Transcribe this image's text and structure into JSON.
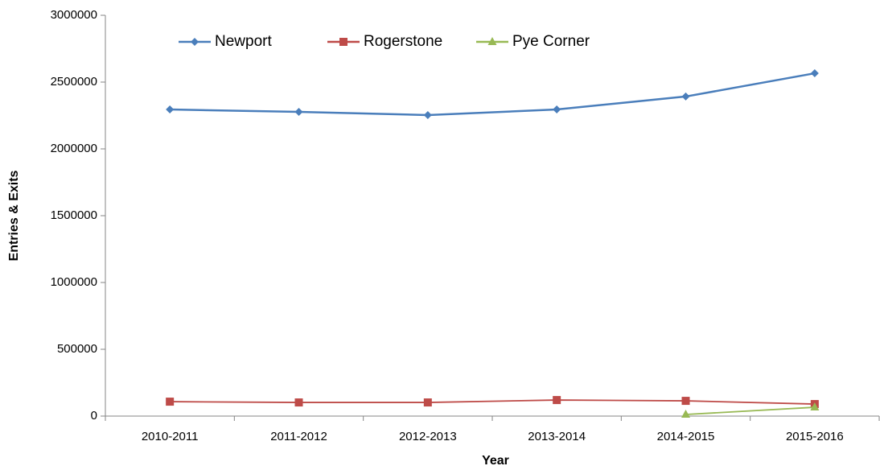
{
  "chart_data": {
    "type": "line",
    "x_label": "Year",
    "y_label": "Entries & Exits",
    "categories": [
      "2010-2011",
      "2011-2012",
      "2012-2013",
      "2013-2014",
      "2014-2015",
      "2015-2016"
    ],
    "series": [
      {
        "name": "Newport",
        "color": "#4a7ebb",
        "marker": "diamond",
        "values": [
          2295000,
          2277000,
          2253000,
          2295000,
          2392000,
          2566000
        ]
      },
      {
        "name": "Rogerstone",
        "color": "#be4b48",
        "marker": "square",
        "values": [
          108000,
          102000,
          102000,
          120000,
          114000,
          90000
        ]
      },
      {
        "name": "Pye Corner",
        "color": "#98b954",
        "marker": "triangle",
        "values": [
          null,
          null,
          null,
          null,
          12000,
          66000
        ]
      }
    ],
    "ylim": [
      0,
      3000000
    ],
    "yticks": [
      0,
      500000,
      1000000,
      1500000,
      2000000,
      2500000,
      3000000
    ],
    "grid": false,
    "legend": "top"
  }
}
